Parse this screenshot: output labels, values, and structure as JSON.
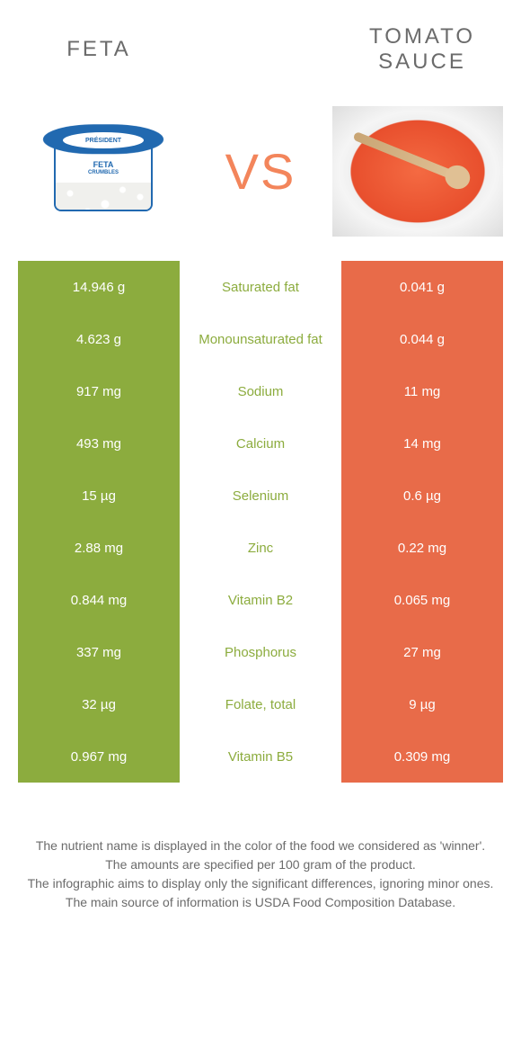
{
  "food_a": {
    "name": "FETA",
    "color": "#8cac3e"
  },
  "food_b": {
    "name": "TOMATO SAUCE",
    "color": "#e86b49"
  },
  "vs_label": "VS",
  "feta_pack_text": "FETA",
  "feta_pack_sub": "CRUMBLES",
  "rows": [
    {
      "nutrient": "Saturated fat",
      "a": "14.946 g",
      "b": "0.041 g",
      "winner": "a"
    },
    {
      "nutrient": "Monounsaturated fat",
      "a": "4.623 g",
      "b": "0.044 g",
      "winner": "a"
    },
    {
      "nutrient": "Sodium",
      "a": "917 mg",
      "b": "11 mg",
      "winner": "a"
    },
    {
      "nutrient": "Calcium",
      "a": "493 mg",
      "b": "14 mg",
      "winner": "a"
    },
    {
      "nutrient": "Selenium",
      "a": "15 µg",
      "b": "0.6 µg",
      "winner": "a"
    },
    {
      "nutrient": "Zinc",
      "a": "2.88 mg",
      "b": "0.22 mg",
      "winner": "a"
    },
    {
      "nutrient": "Vitamin B2",
      "a": "0.844 mg",
      "b": "0.065 mg",
      "winner": "a"
    },
    {
      "nutrient": "Phosphorus",
      "a": "337 mg",
      "b": "27 mg",
      "winner": "a"
    },
    {
      "nutrient": "Folate, total",
      "a": "32 µg",
      "b": "9 µg",
      "winner": "a"
    },
    {
      "nutrient": "Vitamin B5",
      "a": "0.967 mg",
      "b": "0.309 mg",
      "winner": "a"
    }
  ],
  "footer_lines": [
    "The nutrient name is displayed in the color of the food we considered as 'winner'.",
    "The amounts are specified per 100 gram of the product.",
    "The infographic aims to display only the significant differences, ignoring minor ones.",
    "The main source of information is USDA Food Composition Database."
  ]
}
